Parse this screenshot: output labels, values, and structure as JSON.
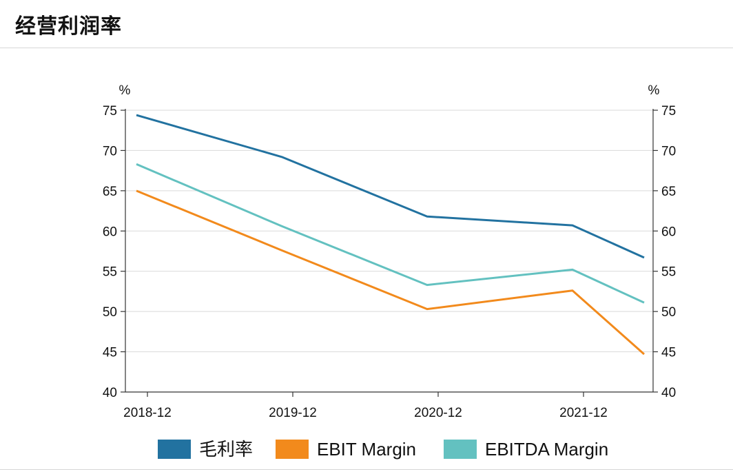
{
  "header": {
    "title": "经营利润率"
  },
  "chart_data": {
    "type": "line",
    "title": "",
    "x": [
      "2018-12",
      "2019-12",
      "2020-12",
      "2021-12",
      ""
    ],
    "y_unit_left": "%",
    "y_unit_right": "%",
    "ylim": [
      40,
      75
    ],
    "yticks": [
      40,
      45,
      50,
      55,
      60,
      65,
      70,
      75
    ],
    "grid": true,
    "legend_position": "bottom",
    "series": [
      {
        "name": "毛利率",
        "color": "#2272a0",
        "points": [
          [
            0,
            74.4
          ],
          [
            1,
            69.2
          ],
          [
            2,
            61.8
          ],
          [
            3,
            60.7
          ],
          [
            4,
            56.7
          ]
        ]
      },
      {
        "name": "EBIT Margin",
        "color": "#f28a1c",
        "points": [
          [
            0,
            65.0
          ],
          [
            1,
            57.6
          ],
          [
            2,
            50.3
          ],
          [
            3,
            52.6
          ],
          [
            4,
            44.7
          ]
        ]
      },
      {
        "name": "EBITDA Margin",
        "color": "#63c1c0",
        "points": [
          [
            0,
            68.3
          ],
          [
            1,
            60.6
          ],
          [
            2,
            53.3
          ],
          [
            3,
            55.2
          ],
          [
            4,
            51.1
          ]
        ]
      }
    ]
  }
}
